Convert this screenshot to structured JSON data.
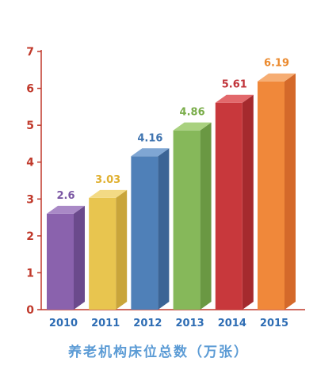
{
  "chart_data": {
    "type": "bar",
    "title": "",
    "xlabel": "养老机构床位总数（万张）",
    "ylabel": "",
    "categories": [
      "2010",
      "2011",
      "2012",
      "2013",
      "2014",
      "2015"
    ],
    "values": [
      2.6,
      3.03,
      4.16,
      4.86,
      5.61,
      6.19
    ],
    "value_labels": [
      "2.6",
      "3.03",
      "4.16",
      "4.86",
      "5.61",
      "6.19"
    ],
    "yticks": [
      "0",
      "1",
      "2",
      "3",
      "4",
      "5",
      "6",
      "7"
    ],
    "ylim": [
      0,
      7
    ],
    "grid": false,
    "style": "3d-bars",
    "bar_colors": [
      {
        "front": "#8a62ad",
        "side": "#6b4a8c",
        "top": "#a989c6"
      },
      {
        "front": "#e8c54f",
        "side": "#c9a53a",
        "top": "#f3da84"
      },
      {
        "front": "#4f80b8",
        "side": "#3b6495",
        "top": "#7fa6d3"
      },
      {
        "front": "#86b85a",
        "side": "#6a9843",
        "top": "#a9d17f"
      },
      {
        "front": "#c8383c",
        "side": "#a52a2e",
        "top": "#e2686b"
      },
      {
        "front": "#f0883a",
        "side": "#d4692a",
        "top": "#f6ad73"
      }
    ],
    "label_colors": [
      "#7a56a3",
      "#e0b030",
      "#3f74b0",
      "#7aad4a",
      "#c0343a",
      "#eb8a2e"
    ],
    "axis_color": "#c0392b",
    "tick_label_color": "#c0392b",
    "category_label_color": "#2e6db4"
  }
}
